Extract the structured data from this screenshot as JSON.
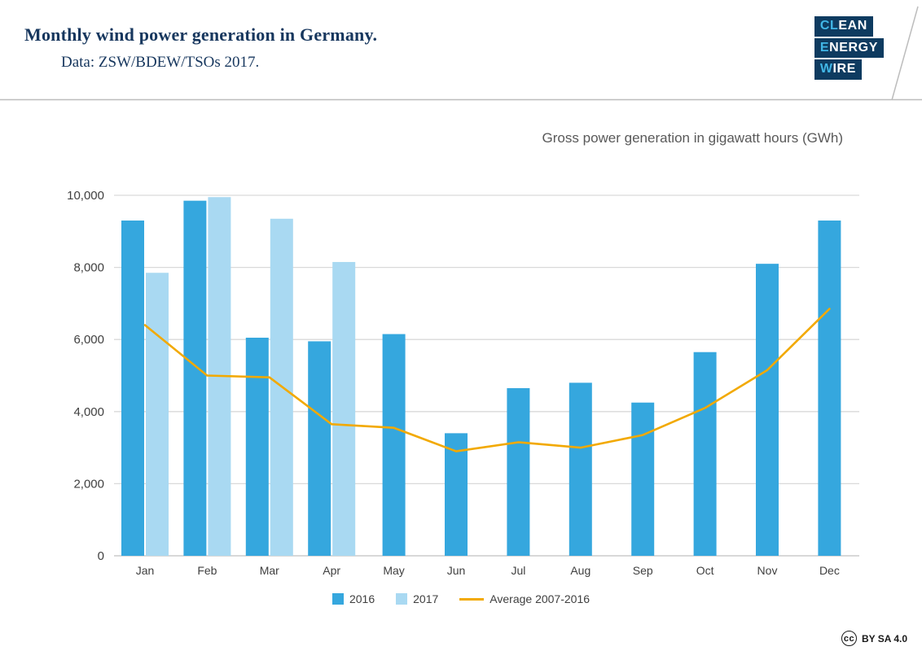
{
  "header": {
    "title": "Monthly wind power generation in Germany.",
    "subtitle": "Data: ZSW/BDEW/TSOs 2017.",
    "logo": {
      "row1_pre": "CL",
      "row1_post": "EAN",
      "row2_pre": "E",
      "row2_post": "NERGY",
      "row3_pre": "W",
      "row3_post": "IRE"
    }
  },
  "chart_subtitle": "Gross power generation in gigawatt hours (GWh)",
  "chart_data": {
    "type": "bar",
    "title": "Gross power generation in gigawatt hours (GWh)",
    "categories": [
      "Jan",
      "Feb",
      "Mar",
      "Apr",
      "May",
      "Jun",
      "Jul",
      "Aug",
      "Sep",
      "Oct",
      "Nov",
      "Dec"
    ],
    "series": [
      {
        "name": "2016",
        "type": "bar",
        "color": "#35a7de",
        "values": [
          9300,
          9850,
          6050,
          5950,
          6150,
          3400,
          4650,
          4800,
          4250,
          5650,
          8100,
          9300
        ]
      },
      {
        "name": "2017",
        "type": "bar",
        "color": "#a9d9f2",
        "values": [
          7850,
          9950,
          9350,
          8150,
          null,
          null,
          null,
          null,
          null,
          null,
          null,
          null
        ]
      },
      {
        "name": "Average 2007-2016",
        "type": "line",
        "color": "#f2a900",
        "values": [
          6400,
          5000,
          4950,
          3650,
          3550,
          2900,
          3150,
          3000,
          3350,
          4100,
          5150,
          6850
        ]
      }
    ],
    "xlabel": "",
    "ylabel": "",
    "ylim": [
      0,
      10000
    ],
    "yticks": [
      0,
      2000,
      4000,
      6000,
      8000,
      10000
    ],
    "ytick_labels": [
      "0",
      "2,000",
      "4,000",
      "6,000",
      "8,000",
      "10,000"
    ],
    "grid": true,
    "legend_position": "bottom"
  },
  "footer": {
    "cc_letters": "cc",
    "license": "BY SA 4.0"
  }
}
